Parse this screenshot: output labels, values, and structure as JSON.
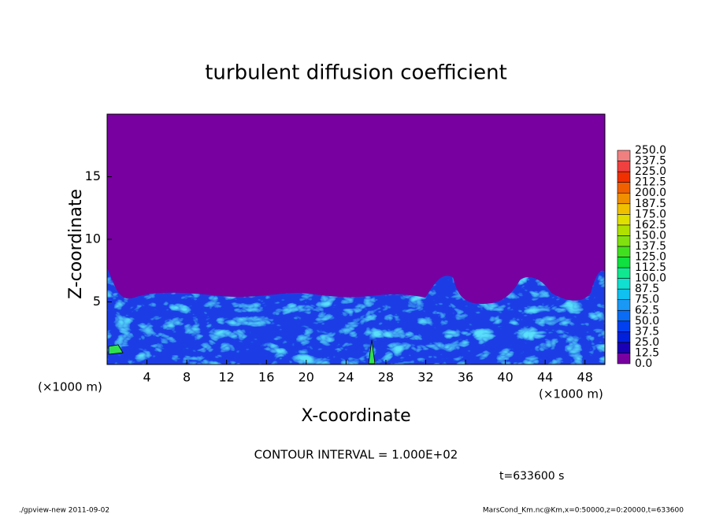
{
  "chart_data": {
    "type": "contour",
    "title": "turbulent diffusion coefficient",
    "xlabel": "X-coordinate",
    "ylabel": "Z-coordinate",
    "x_unit_label": "(×1000 m)",
    "xlim": [
      0,
      50
    ],
    "xticks": [
      4,
      8,
      12,
      16,
      20,
      24,
      28,
      32,
      36,
      40,
      44,
      48
    ],
    "ylim": [
      0,
      20
    ],
    "yticks": [
      5,
      10,
      15
    ],
    "levels": [
      {
        "value": 0,
        "label": "0.0"
      },
      {
        "value": 12.5,
        "label": "12.5"
      },
      {
        "value": 25,
        "label": "25.0"
      },
      {
        "value": 37.5,
        "label": "37.5"
      },
      {
        "value": 50,
        "label": "50.0"
      },
      {
        "value": 62.5,
        "label": "62.5"
      },
      {
        "value": 75,
        "label": "75.0"
      },
      {
        "value": 87.5,
        "label": "87.5"
      },
      {
        "value": 100,
        "label": "100.0"
      },
      {
        "value": 112.5,
        "label": "112.5"
      },
      {
        "value": 125,
        "label": "125.0"
      },
      {
        "value": 137.5,
        "label": "137.5"
      },
      {
        "value": 150,
        "label": "150.0"
      },
      {
        "value": 162.5,
        "label": "162.5"
      },
      {
        "value": 175,
        "label": "175.0"
      },
      {
        "value": 187.5,
        "label": "187.5"
      },
      {
        "value": 200,
        "label": "200.0"
      },
      {
        "value": 212.5,
        "label": "212.5"
      },
      {
        "value": 225,
        "label": "225.0"
      },
      {
        "value": 237.5,
        "label": "237.5"
      },
      {
        "value": 250,
        "label": "250.0"
      }
    ],
    "level_colors": [
      "#7800a0",
      "#1a00b4",
      "#0020dc",
      "#0040f0",
      "#0a6cf5",
      "#1a98f5",
      "#10c0f0",
      "#10e0d0",
      "#10e890",
      "#10e040",
      "#40e020",
      "#80e010",
      "#b0e000",
      "#e0e000",
      "#f0c000",
      "#f09000",
      "#f06000",
      "#f03000",
      "#f04040",
      "#f08080"
    ],
    "contour_interval": "CONTOUR INTERVAL = 1.000E+02",
    "time_label": "t=633600 s",
    "footer_left": "./gpview-new  2011-09-02",
    "footer_right": "MarsCond_Km.nc@Km,x=0:50000,z=0:20000,t=633600"
  }
}
